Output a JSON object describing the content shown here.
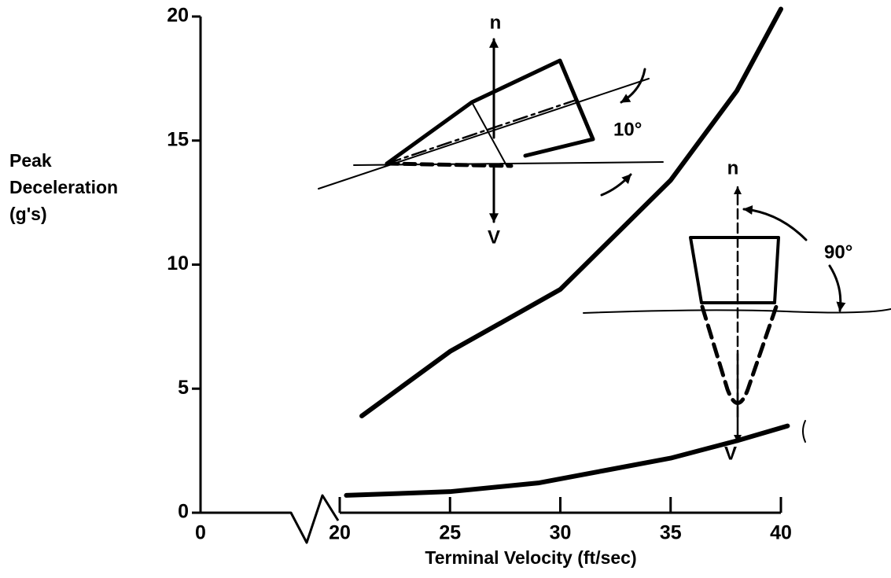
{
  "chart_data": {
    "type": "line",
    "xlabel": "Terminal Velocity (ft/sec)",
    "ylabel": [
      "Peak",
      "Deceleration",
      "(g's)"
    ],
    "xlim": [
      20,
      40
    ],
    "xticks": [
      0,
      20,
      25,
      30,
      35,
      40
    ],
    "axis_break": true,
    "ylim": [
      0,
      20
    ],
    "yticks": [
      0,
      5,
      10,
      15,
      20
    ],
    "grid": false,
    "series": [
      {
        "name": "10°",
        "color": "#000000",
        "x": [
          21,
          25,
          30,
          35,
          38,
          40
        ],
        "values": [
          3.9,
          6.5,
          9.0,
          13.4,
          17.0,
          20.3
        ]
      },
      {
        "name": "90°",
        "color": "#000000",
        "x": [
          20.3,
          25,
          29,
          32,
          35,
          38,
          40.3
        ],
        "values": [
          0.7,
          0.85,
          1.2,
          1.7,
          2.2,
          2.9,
          3.5
        ]
      }
    ],
    "annotations": [
      "n",
      "V",
      "n",
      "V"
    ]
  }
}
